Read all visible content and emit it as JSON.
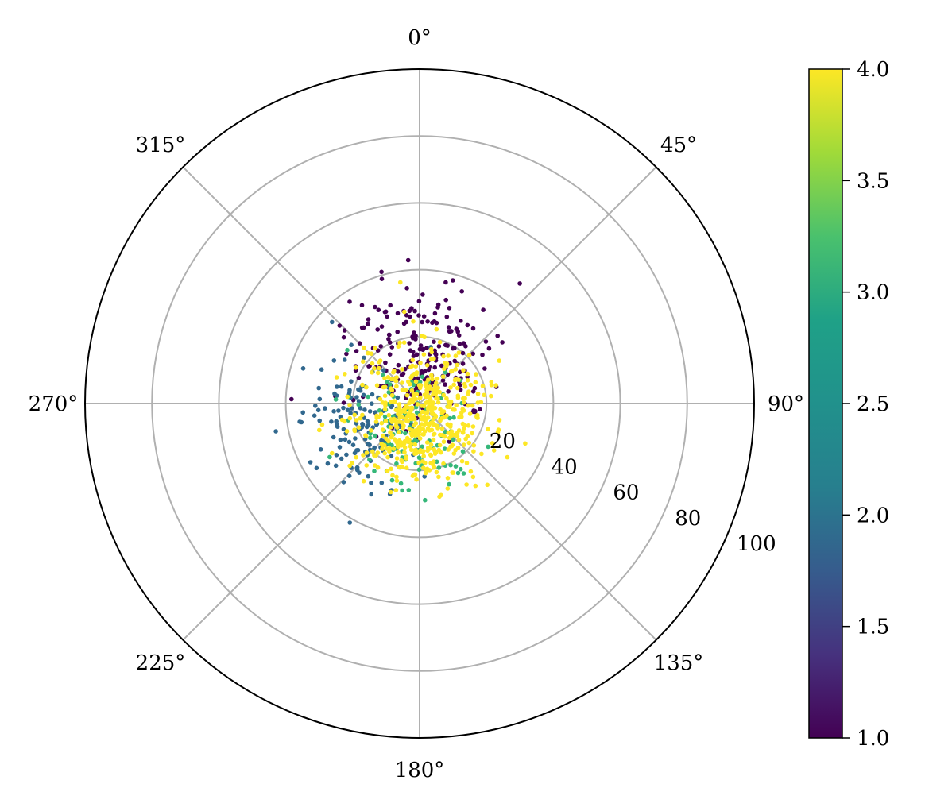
{
  "chart_data": {
    "type": "scatter",
    "projection": "polar",
    "theta_zero_location": "top",
    "theta_direction": "clockwise",
    "theta_ticks": [
      0,
      45,
      90,
      135,
      180,
      225,
      270,
      315
    ],
    "theta_tick_labels": [
      "0°",
      "45°",
      "90°",
      "135°",
      "180°",
      "225°",
      "270°",
      "315°"
    ],
    "r_ticks": [
      20,
      40,
      60,
      80,
      100
    ],
    "r_tick_labels": [
      "20",
      "40",
      "60",
      "80",
      "100"
    ],
    "rlim": [
      0,
      100
    ],
    "grid": true,
    "colormap": "viridis",
    "color_range": [
      1.0,
      4.0
    ],
    "colorbar": {
      "placement": "right",
      "ticks": [
        1.0,
        1.5,
        2.0,
        2.5,
        3.0,
        3.5,
        4.0
      ],
      "tick_labels": [
        "1.0",
        "1.5",
        "2.0",
        "2.5",
        "3.0",
        "3.5",
        "4.0"
      ]
    },
    "groups": [
      {
        "value": 1,
        "color": "#440154",
        "count": 220,
        "center_theta": 0,
        "center_r": 14,
        "spread": 11
      },
      {
        "value": 2,
        "color": "#31688e",
        "count": 150,
        "center_theta": 250,
        "center_r": 18,
        "spread": 9
      },
      {
        "value": 3,
        "color": "#35b779",
        "count": 120,
        "center_theta": 190,
        "center_r": 7,
        "spread": 9
      },
      {
        "value": 4,
        "color": "#fde725",
        "count": 520,
        "center_theta": 180,
        "center_r": 4,
        "spread": 10
      }
    ]
  }
}
